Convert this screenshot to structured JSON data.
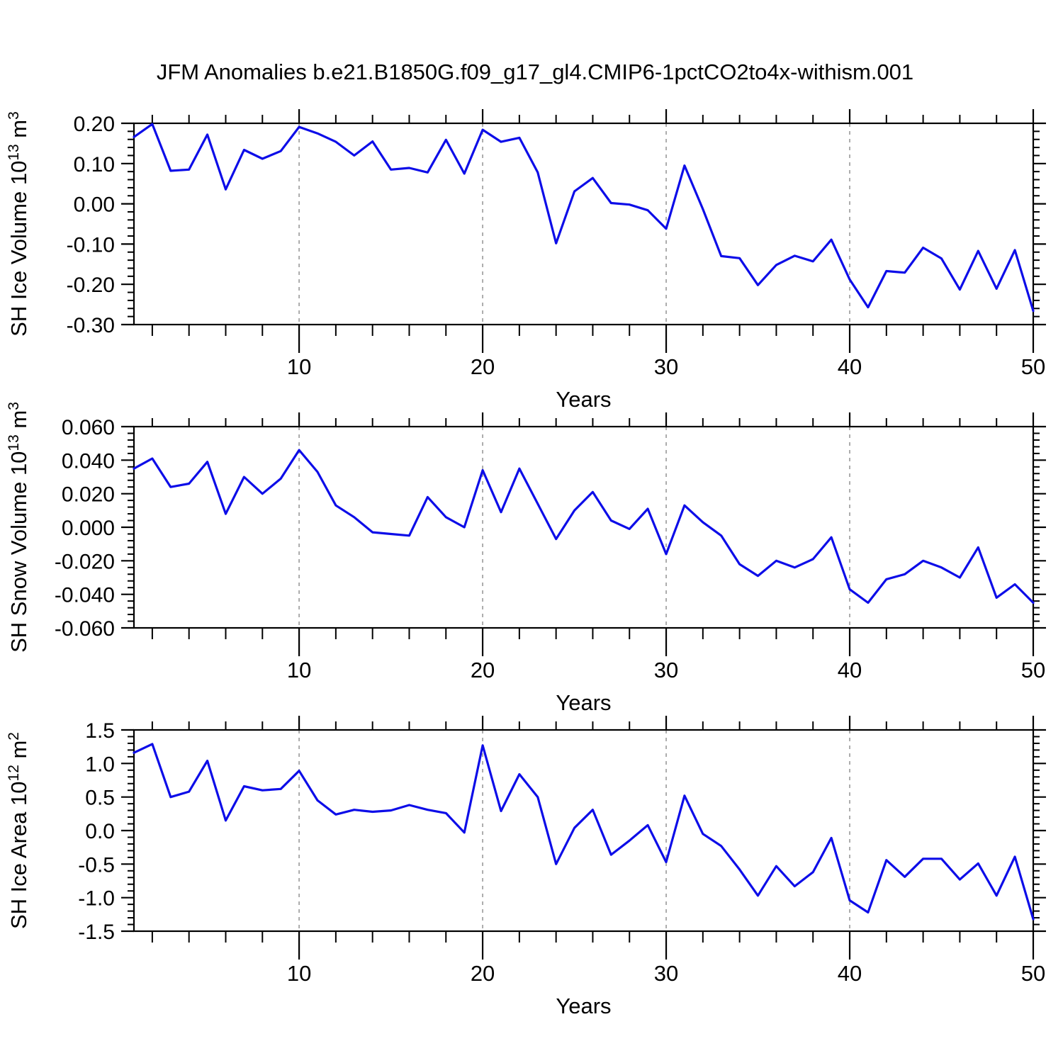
{
  "title": "JFM Anomalies b.e21.B1850G.f09_g17_gl4.CMIP6-1pctCO2to4x-withism.001",
  "colors": {
    "line": "#0D0DE8",
    "grid": "#999999",
    "axis": "#000000",
    "text": "#000000",
    "background": "#FFFFFF"
  },
  "chart_data": [
    {
      "id": "sh-ice-volume",
      "type": "line",
      "ylabel": "SH Ice Volume 10^13 m^3",
      "ylabel_parts": [
        [
          "SH Ice Volume 10",
          false
        ],
        [
          "13",
          true
        ],
        [
          " m",
          false
        ],
        [
          "3",
          true
        ]
      ],
      "xlabel": "Years",
      "xlim": [
        1,
        50
      ],
      "xticks": [
        10,
        20,
        30,
        40,
        50
      ],
      "xtick_labels": [
        "10",
        "20",
        "30",
        "40",
        "50"
      ],
      "x_minor_step": 2,
      "gridlines_x": [
        10,
        20,
        30,
        40
      ],
      "grid": "dashed-vertical",
      "ylim": [
        -0.3,
        0.2
      ],
      "yticks": [
        0.2,
        0.1,
        0.0,
        -0.1,
        -0.2,
        -0.3
      ],
      "ytick_labels": [
        "0.20",
        "0.10",
        "0.00",
        "-0.10",
        "-0.20",
        "-0.30"
      ],
      "y_minor_step": 0.02,
      "values": [
        0.166,
        0.198,
        0.082,
        0.085,
        0.172,
        0.036,
        0.134,
        0.112,
        0.131,
        0.191,
        0.175,
        0.154,
        0.12,
        0.155,
        0.085,
        0.089,
        0.078,
        0.159,
        0.075,
        0.184,
        0.154,
        0.164,
        0.078,
        -0.098,
        0.031,
        0.064,
        0.002,
        -0.002,
        -0.016,
        -0.062,
        0.095,
        -0.013,
        -0.13,
        -0.135,
        -0.202,
        -0.152,
        -0.129,
        -0.143,
        -0.089,
        -0.188,
        -0.257,
        -0.167,
        -0.171,
        -0.109,
        -0.136,
        -0.213,
        -0.117,
        -0.211,
        -0.115,
        -0.266
      ]
    },
    {
      "id": "sh-snow-volume",
      "type": "line",
      "ylabel": "SH Snow Volume 10^13 m^3",
      "ylabel_parts": [
        [
          "SH Snow Volume 10",
          false
        ],
        [
          "13",
          true
        ],
        [
          " m",
          false
        ],
        [
          "3",
          true
        ]
      ],
      "xlabel": "Years",
      "xlim": [
        1,
        50
      ],
      "xticks": [
        10,
        20,
        30,
        40,
        50
      ],
      "xtick_labels": [
        "10",
        "20",
        "30",
        "40",
        "50"
      ],
      "x_minor_step": 2,
      "gridlines_x": [
        10,
        20,
        30,
        40
      ],
      "grid": "dashed-vertical",
      "ylim": [
        -0.06,
        0.06
      ],
      "yticks": [
        0.06,
        0.04,
        0.02,
        0.0,
        -0.02,
        -0.04,
        -0.06
      ],
      "ytick_labels": [
        "0.060",
        "0.040",
        "0.020",
        "0.000",
        "-0.020",
        "-0.040",
        "-0.060"
      ],
      "y_minor_step": 0.004,
      "values": [
        0.035,
        0.041,
        0.024,
        0.026,
        0.039,
        0.008,
        0.03,
        0.02,
        0.029,
        0.046,
        0.033,
        0.013,
        0.006,
        -0.003,
        -0.004,
        -0.005,
        0.018,
        0.006,
        0.0,
        0.034,
        0.009,
        0.035,
        0.014,
        -0.007,
        0.01,
        0.021,
        0.004,
        -0.001,
        0.011,
        -0.016,
        0.013,
        0.003,
        -0.005,
        -0.022,
        -0.029,
        -0.02,
        -0.024,
        -0.019,
        -0.006,
        -0.037,
        -0.045,
        -0.031,
        -0.028,
        -0.02,
        -0.024,
        -0.03,
        -0.012,
        -0.042,
        -0.034,
        -0.045
      ]
    },
    {
      "id": "sh-ice-area",
      "type": "line",
      "ylabel": "SH Ice Area 10^12 m^2",
      "ylabel_parts": [
        [
          "SH Ice Area 10",
          false
        ],
        [
          "12",
          true
        ],
        [
          " m",
          false
        ],
        [
          "2",
          true
        ]
      ],
      "xlabel": "Years",
      "xlim": [
        1,
        50
      ],
      "xticks": [
        10,
        20,
        30,
        40,
        50
      ],
      "xtick_labels": [
        "10",
        "20",
        "30",
        "40",
        "50"
      ],
      "x_minor_step": 2,
      "gridlines_x": [
        10,
        20,
        30,
        40
      ],
      "grid": "dashed-vertical",
      "ylim": [
        -1.5,
        1.5
      ],
      "yticks": [
        1.5,
        1.0,
        0.5,
        0.0,
        -0.5,
        -1.0,
        -1.5
      ],
      "ytick_labels": [
        "1.5",
        "1.0",
        "0.5",
        "0.0",
        "-0.5",
        "-1.0",
        "-1.5"
      ],
      "y_minor_step": 0.1,
      "values": [
        1.16,
        1.29,
        0.5,
        0.58,
        1.04,
        0.15,
        0.66,
        0.6,
        0.62,
        0.89,
        0.45,
        0.24,
        0.31,
        0.28,
        0.3,
        0.38,
        0.31,
        0.26,
        -0.03,
        1.27,
        0.29,
        0.84,
        0.5,
        -0.5,
        0.04,
        0.31,
        -0.36,
        -0.15,
        0.08,
        -0.47,
        0.52,
        -0.05,
        -0.23,
        -0.58,
        -0.97,
        -0.53,
        -0.83,
        -0.62,
        -0.11,
        -1.04,
        -1.22,
        -0.44,
        -0.69,
        -0.42,
        -0.42,
        -0.73,
        -0.49,
        -0.97,
        -0.39,
        -1.32
      ]
    }
  ]
}
